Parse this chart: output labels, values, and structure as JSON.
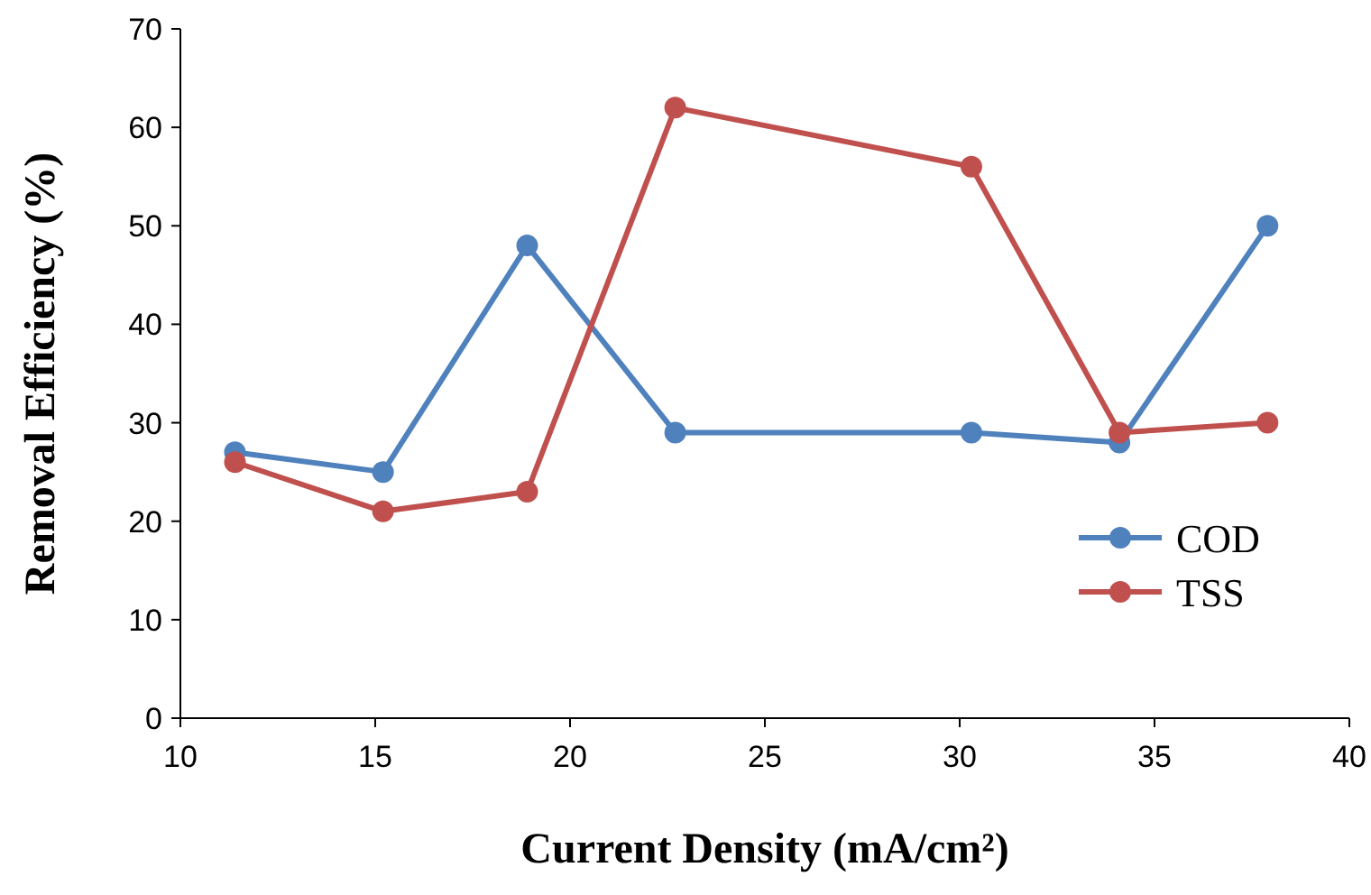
{
  "chart_data": {
    "type": "line",
    "xlabel": "Current Density (mA/cm²)",
    "ylabel": "Removal Efficiency (%)",
    "x": [
      11.4,
      15.2,
      18.9,
      22.7,
      30.3,
      34.1,
      37.9
    ],
    "series": [
      {
        "name": "COD",
        "color": "#4f81bd",
        "values": [
          27,
          25,
          48,
          29,
          29,
          28,
          50
        ]
      },
      {
        "name": "TSS",
        "color": "#c0504d",
        "values": [
          26,
          21,
          23,
          62,
          56,
          29,
          30
        ]
      }
    ],
    "xlim": [
      10,
      40
    ],
    "xticks": [
      10,
      15,
      20,
      25,
      30,
      35,
      40
    ],
    "ylim": [
      0,
      70
    ],
    "yticks": [
      0,
      10,
      20,
      30,
      40,
      50,
      60,
      70
    ],
    "grid": false,
    "legend": "bottom right",
    "marker": "circle",
    "line_style": "solid"
  }
}
